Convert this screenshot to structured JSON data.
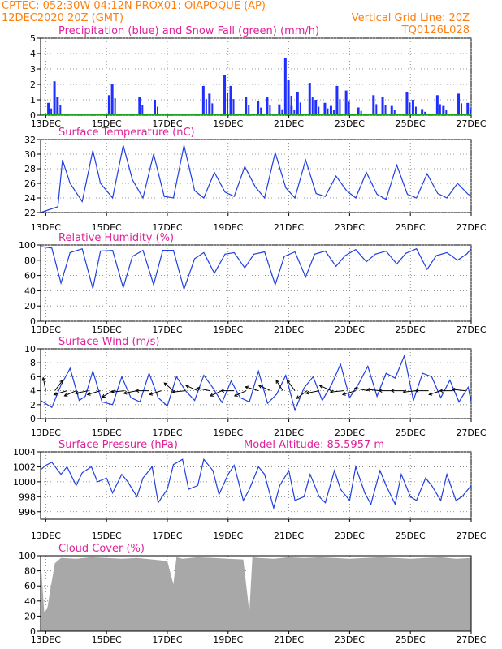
{
  "header": {
    "line1": "CPTEC:   052:30W-04:12N   PROX01: OIAPOQUE (AP)",
    "line2": "12DEC2020 20Z (GMT)",
    "vgrid": "Vertical Grid Line: 20Z",
    "code": "TQ0126L028"
  },
  "colors": {
    "header": "#ff7f0e",
    "titles": "#e0209a",
    "precip": "#1f2fff",
    "snow": "#1fa31f",
    "line": "#1f3fe0",
    "cloud": "#a8a8a8"
  },
  "x_ticks": [
    "13DEC",
    "15DEC",
    "17DEC",
    "19DEC",
    "21DEC",
    "23DEC",
    "25DEC",
    "27DEC"
  ],
  "chart_data": [
    {
      "type": "bar",
      "title": "Precipitation (blue) and Snow Fall (green) (mm/h)",
      "ylim": [
        0,
        5
      ],
      "yticks": [
        0,
        1,
        2,
        3,
        4,
        5
      ],
      "xlim_days": [
        12.83,
        27.0
      ],
      "series": [
        {
          "name": "Precipitation",
          "values": [
            [
              13.1,
              0.8
            ],
            [
              13.3,
              2.2
            ],
            [
              13.4,
              1.2
            ],
            [
              15.1,
              1.3
            ],
            [
              15.2,
              2.0
            ],
            [
              16.1,
              1.2
            ],
            [
              16.6,
              1.0
            ],
            [
              18.2,
              1.9
            ],
            [
              18.4,
              1.4
            ],
            [
              18.9,
              2.6
            ],
            [
              19.1,
              1.9
            ],
            [
              19.6,
              1.2
            ],
            [
              20.0,
              0.9
            ],
            [
              20.3,
              1.2
            ],
            [
              20.7,
              0.7
            ],
            [
              20.9,
              3.7
            ],
            [
              21.0,
              2.3
            ],
            [
              21.1,
              0.6
            ],
            [
              21.3,
              1.5
            ],
            [
              21.7,
              2.1
            ],
            [
              21.9,
              1.0
            ],
            [
              22.2,
              0.8
            ],
            [
              22.4,
              0.6
            ],
            [
              22.6,
              1.9
            ],
            [
              22.9,
              1.6
            ],
            [
              23.3,
              0.5
            ],
            [
              23.8,
              1.3
            ],
            [
              24.1,
              1.2
            ],
            [
              24.4,
              0.6
            ],
            [
              24.9,
              1.5
            ],
            [
              25.1,
              1.0
            ],
            [
              25.4,
              0.4
            ],
            [
              25.9,
              1.3
            ],
            [
              26.1,
              0.6
            ],
            [
              26.6,
              1.4
            ],
            [
              26.9,
              0.8
            ]
          ]
        },
        {
          "name": "Snow Fall",
          "values": []
        }
      ]
    },
    {
      "type": "line",
      "title": "Surface Temperature (nC)",
      "ylim": [
        22,
        32
      ],
      "yticks": [
        22,
        24,
        26,
        28,
        30,
        32
      ],
      "x": [
        12.83,
        13.4,
        13.55,
        13.8,
        14.2,
        14.55,
        14.8,
        15.2,
        15.55,
        15.85,
        16.2,
        16.55,
        16.9,
        17.2,
        17.55,
        17.9,
        18.2,
        18.55,
        18.9,
        19.2,
        19.55,
        19.9,
        20.2,
        20.55,
        20.9,
        21.2,
        21.55,
        21.9,
        22.2,
        22.55,
        22.9,
        23.2,
        23.55,
        23.9,
        24.2,
        24.55,
        24.9,
        25.2,
        25.55,
        25.9,
        26.2,
        26.55,
        26.9,
        27.0
      ],
      "y": [
        22.0,
        22.8,
        29.2,
        26.0,
        23.5,
        30.5,
        26.0,
        24.0,
        31.2,
        26.5,
        24.0,
        30.0,
        24.2,
        24.0,
        31.2,
        25.0,
        24.0,
        27.5,
        24.8,
        24.2,
        28.3,
        25.5,
        24.0,
        30.2,
        25.4,
        24.0,
        29.2,
        24.6,
        24.2,
        27.0,
        25.0,
        24.0,
        27.5,
        24.5,
        23.8,
        28.5,
        24.5,
        24.0,
        27.3,
        24.6,
        24.0,
        26.0,
        24.5,
        24.3
      ],
      "series": [
        {
          "name": "Surface Temperature"
        }
      ]
    },
    {
      "type": "line",
      "title": "Relative Humidity (%)",
      "ylim": [
        0,
        100
      ],
      "yticks": [
        0,
        20,
        40,
        60,
        80,
        100
      ],
      "x": [
        12.83,
        13.2,
        13.5,
        13.8,
        14.2,
        14.55,
        14.8,
        15.2,
        15.55,
        15.85,
        16.2,
        16.55,
        16.85,
        17.2,
        17.55,
        17.9,
        18.2,
        18.55,
        18.9,
        19.2,
        19.55,
        19.85,
        20.2,
        20.55,
        20.85,
        21.2,
        21.55,
        21.85,
        22.2,
        22.55,
        22.85,
        23.2,
        23.55,
        23.85,
        24.2,
        24.55,
        24.85,
        25.2,
        25.55,
        25.85,
        26.2,
        26.55,
        26.85,
        27.0
      ],
      "y": [
        98,
        96,
        50,
        90,
        95,
        43,
        92,
        93,
        44,
        85,
        93,
        48,
        93,
        93,
        42,
        82,
        90,
        63,
        88,
        90,
        70,
        88,
        91,
        48,
        85,
        91,
        58,
        88,
        92,
        72,
        86,
        94,
        78,
        88,
        92,
        75,
        89,
        95,
        68,
        86,
        90,
        80,
        88,
        95
      ],
      "series": [
        {
          "name": "Relative Humidity"
        }
      ]
    },
    {
      "type": "line",
      "title": "Surface Wind (m/s)",
      "ylim": [
        0,
        10
      ],
      "yticks": [
        0,
        2,
        4,
        6,
        8,
        10
      ],
      "x": [
        12.83,
        13.2,
        13.5,
        13.8,
        14.1,
        14.3,
        14.55,
        14.85,
        15.2,
        15.5,
        15.8,
        16.1,
        16.4,
        16.7,
        17.0,
        17.3,
        17.6,
        17.9,
        18.2,
        18.5,
        18.8,
        19.1,
        19.4,
        19.7,
        20.0,
        20.3,
        20.6,
        20.9,
        21.2,
        21.5,
        21.8,
        22.1,
        22.4,
        22.7,
        23.0,
        23.3,
        23.6,
        23.9,
        24.2,
        24.5,
        24.8,
        25.1,
        25.4,
        25.7,
        26.0,
        26.3,
        26.6,
        26.9,
        27.0
      ],
      "y": [
        2.6,
        1.6,
        4.8,
        7.2,
        2.6,
        3.2,
        6.8,
        2.4,
        2.0,
        6.0,
        3.0,
        2.4,
        6.5,
        3.0,
        1.8,
        6.0,
        4.0,
        2.6,
        6.2,
        4.4,
        2.3,
        5.4,
        3.0,
        2.4,
        6.8,
        2.2,
        3.5,
        6.2,
        1.2,
        4.4,
        6.0,
        2.6,
        4.8,
        7.8,
        3.0,
        5.0,
        7.5,
        3.2,
        6.5,
        5.8,
        9.0,
        2.6,
        6.5,
        6.0,
        3.0,
        5.5,
        2.4,
        4.5,
        2.4
      ],
      "wind_arrows": [
        {
          "day": 13.0,
          "u": -0.2,
          "v": 1.0
        },
        {
          "day": 13.3,
          "u": 0.6,
          "v": 0.8
        },
        {
          "day": 13.7,
          "u": -1.0,
          "v": -0.3
        },
        {
          "day": 14.0,
          "u": -0.9,
          "v": -0.4
        },
        {
          "day": 14.4,
          "u": -1.0,
          "v": -0.2
        },
        {
          "day": 14.8,
          "u": -1.0,
          "v": -0.3
        },
        {
          "day": 15.2,
          "u": -0.8,
          "v": -0.5
        },
        {
          "day": 15.6,
          "u": -1.0,
          "v": -0.1
        },
        {
          "day": 16.0,
          "u": -1.0,
          "v": -0.2
        },
        {
          "day": 16.4,
          "u": -1.0,
          "v": 0.0
        },
        {
          "day": 16.8,
          "u": -0.9,
          "v": -0.3
        },
        {
          "day": 17.2,
          "u": -0.7,
          "v": 0.6
        },
        {
          "day": 17.6,
          "u": -1.0,
          "v": -0.1
        },
        {
          "day": 18.0,
          "u": -0.9,
          "v": 0.4
        },
        {
          "day": 18.4,
          "u": -1.0,
          "v": 0.2
        },
        {
          "day": 18.8,
          "u": -0.9,
          "v": -0.4
        },
        {
          "day": 19.2,
          "u": -1.0,
          "v": 0.0
        },
        {
          "day": 19.6,
          "u": -0.9,
          "v": -0.4
        },
        {
          "day": 20.0,
          "u": -1.0,
          "v": 0.3
        },
        {
          "day": 20.4,
          "u": -0.9,
          "v": 0.4
        },
        {
          "day": 20.8,
          "u": -0.5,
          "v": 0.8
        },
        {
          "day": 21.2,
          "u": -0.6,
          "v": 0.8
        },
        {
          "day": 21.6,
          "u": -0.8,
          "v": -0.6
        },
        {
          "day": 22.0,
          "u": -1.0,
          "v": -0.2
        },
        {
          "day": 22.4,
          "u": -0.9,
          "v": 0.4
        },
        {
          "day": 22.8,
          "u": -1.0,
          "v": -0.1
        },
        {
          "day": 23.2,
          "u": -1.0,
          "v": -0.3
        },
        {
          "day": 23.6,
          "u": -1.0,
          "v": 0.2
        },
        {
          "day": 24.0,
          "u": -1.0,
          "v": 0.1
        },
        {
          "day": 24.4,
          "u": -1.0,
          "v": 0.0
        },
        {
          "day": 24.8,
          "u": -1.0,
          "v": 0.0
        },
        {
          "day": 25.2,
          "u": -1.0,
          "v": -0.1
        },
        {
          "day": 25.6,
          "u": -1.0,
          "v": 0.0
        },
        {
          "day": 26.0,
          "u": -0.9,
          "v": -0.3
        },
        {
          "day": 26.4,
          "u": -1.0,
          "v": 0.0
        },
        {
          "day": 26.8,
          "u": -1.0,
          "v": 0.1
        }
      ],
      "series": [
        {
          "name": "Surface Wind"
        }
      ]
    },
    {
      "type": "line",
      "title": "Surface Pressure (hPa)",
      "annotation": "Model Altitude: 85.5957 m",
      "ylim": [
        995,
        1004
      ],
      "yticks": [
        996,
        998,
        1000,
        1002,
        1004
      ],
      "x": [
        12.83,
        13.0,
        13.2,
        13.5,
        13.7,
        14.0,
        14.2,
        14.5,
        14.7,
        15.0,
        15.2,
        15.5,
        15.7,
        16.0,
        16.2,
        16.5,
        16.7,
        17.0,
        17.2,
        17.5,
        17.7,
        18.0,
        18.2,
        18.5,
        18.7,
        19.0,
        19.2,
        19.5,
        19.7,
        20.0,
        20.2,
        20.5,
        20.7,
        21.0,
        21.2,
        21.5,
        21.7,
        22.0,
        22.2,
        22.5,
        22.7,
        23.0,
        23.2,
        23.5,
        23.7,
        24.0,
        24.2,
        24.5,
        24.7,
        25.0,
        25.2,
        25.5,
        25.7,
        26.0,
        26.2,
        26.5,
        26.7,
        27.0
      ],
      "y": [
        1001.6,
        1002.2,
        1002.6,
        1001.0,
        1002.0,
        999.5,
        1001.2,
        1002.0,
        1000.0,
        1000.5,
        998.5,
        1001.0,
        1000.0,
        998.0,
        1000.5,
        1002.0,
        997.2,
        999.0,
        1002.3,
        1003.0,
        999.0,
        999.5,
        1003.0,
        1001.5,
        998.3,
        1001.0,
        1002.2,
        997.5,
        999.0,
        1002.0,
        1001.0,
        996.5,
        999.5,
        1001.5,
        997.5,
        998.0,
        1001.0,
        998.0,
        997.2,
        1001.5,
        999.0,
        997.5,
        1002.0,
        998.5,
        997.0,
        1001.5,
        999.5,
        997.0,
        1001.0,
        998.0,
        997.5,
        1000.5,
        999.5,
        997.5,
        1001.0,
        997.5,
        998.0,
        999.5
      ],
      "series": [
        {
          "name": "Surface Pressure"
        }
      ]
    },
    {
      "type": "area",
      "title": "Cloud Cover (%)",
      "ylim": [
        0,
        100
      ],
      "yticks": [
        0,
        20,
        40,
        60,
        80,
        100
      ],
      "x": [
        12.83,
        12.95,
        13.05,
        13.15,
        13.3,
        13.5,
        14.0,
        14.5,
        15.0,
        15.5,
        16.0,
        16.5,
        17.0,
        17.2,
        17.3,
        17.5,
        18.0,
        18.5,
        19.0,
        19.5,
        19.7,
        19.8,
        20.0,
        20.5,
        21.0,
        21.5,
        22.0,
        22.5,
        23.0,
        23.5,
        24.0,
        24.5,
        25.0,
        25.5,
        26.0,
        26.5,
        27.0
      ],
      "y": [
        96,
        25,
        30,
        55,
        90,
        97,
        96,
        98,
        97,
        96,
        97,
        95,
        93,
        62,
        98,
        96,
        98,
        97,
        96,
        95,
        25,
        98,
        97,
        96,
        98,
        97,
        98,
        97,
        96,
        97,
        98,
        97,
        96,
        97,
        98,
        96,
        97
      ],
      "series": [
        {
          "name": "Cloud Cover"
        }
      ]
    }
  ]
}
